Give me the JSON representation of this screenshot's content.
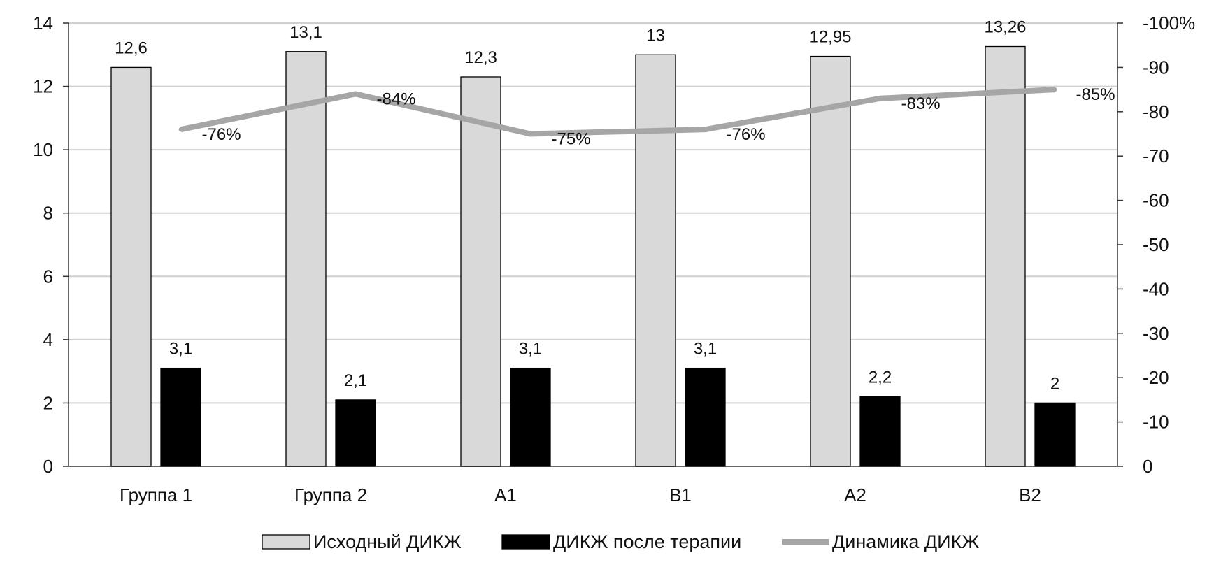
{
  "chart_data": {
    "type": "bar",
    "categories": [
      "Группа 1",
      "Группа 2",
      "A1",
      "B1",
      "A2",
      "B2"
    ],
    "series": [
      {
        "name": "Исходный ДИКЖ",
        "type": "bar",
        "axis": "left",
        "values": [
          12.6,
          13.1,
          12.3,
          13,
          12.95,
          13.26
        ],
        "labels": [
          "12,6",
          "13,1",
          "12,3",
          "13",
          "12,95",
          "13,26"
        ],
        "color": "#d9d9d9"
      },
      {
        "name": "ДИКЖ после терапии",
        "type": "bar",
        "axis": "left",
        "values": [
          3.1,
          2.1,
          3.1,
          3.1,
          2.2,
          2
        ],
        "labels": [
          "3,1",
          "2,1",
          "3,1",
          "3,1",
          "2,2",
          "2"
        ],
        "color": "#000000"
      },
      {
        "name": "Динамика ДИКЖ",
        "type": "line",
        "axis": "right",
        "values": [
          -76,
          -84,
          -75,
          -76,
          -83,
          -85
        ],
        "labels": [
          "-76%",
          "-84%",
          "-75%",
          "-76%",
          "-83%",
          "-85%"
        ],
        "color": "#a6a6a6"
      }
    ],
    "y_left": {
      "ylim": [
        0,
        14
      ],
      "ticks": [
        "0",
        "2",
        "4",
        "6",
        "8",
        "10",
        "12",
        "14"
      ]
    },
    "y_right": {
      "ylim": [
        0,
        -100
      ],
      "ticks": [
        "0",
        "-10",
        "-20",
        "-30",
        "-40",
        "-50",
        "-60",
        "-70",
        "-80",
        "-90",
        "-100%"
      ]
    },
    "grid": true,
    "legend_position": "bottom"
  }
}
